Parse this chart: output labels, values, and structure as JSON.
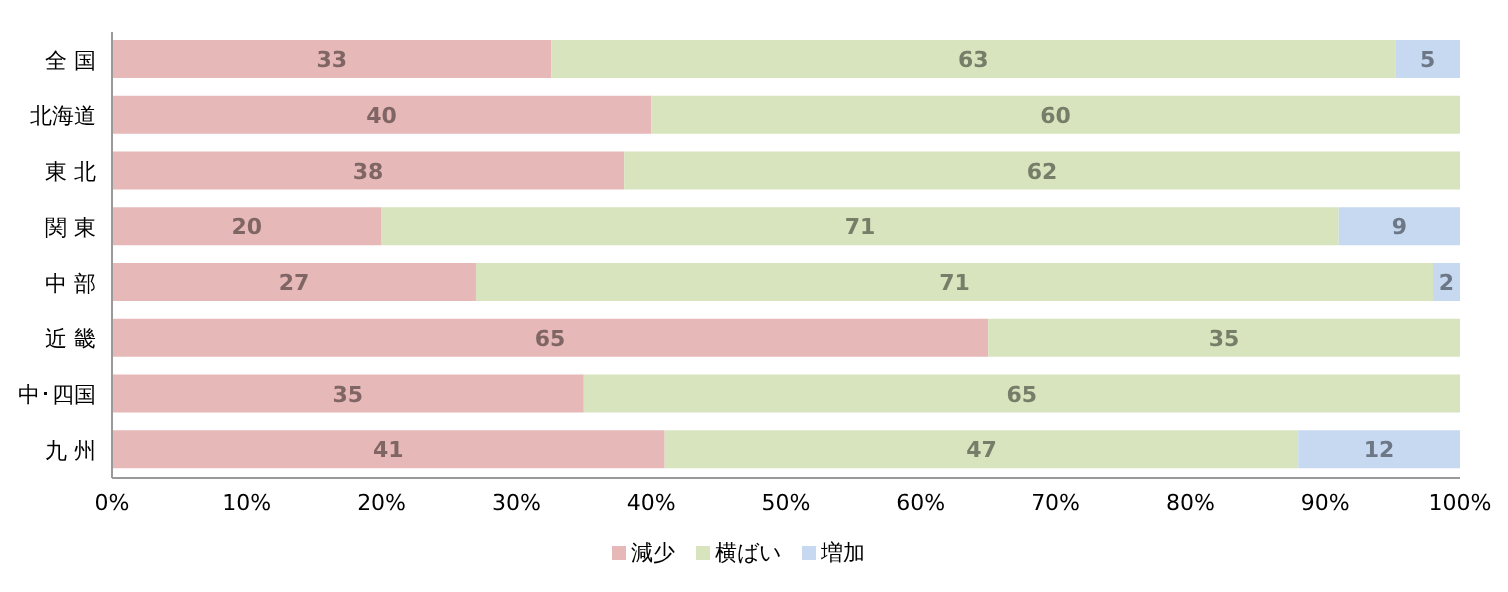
{
  "chart_data": {
    "type": "bar",
    "orientation": "horizontal",
    "stacked": true,
    "categories": [
      "全 国",
      "北海道",
      "東 北",
      "関 東",
      "中 部",
      "近 畿",
      "中･四国",
      "九 州"
    ],
    "series": [
      {
        "name": "減少",
        "color": "#e6b9b8",
        "values": [
          32.6,
          40,
          38,
          20,
          27,
          65,
          35,
          41
        ],
        "value_labels": [
          "33",
          "40",
          "38",
          "20",
          "27",
          "65",
          "35",
          "41"
        ]
      },
      {
        "name": "横ばい",
        "color": "#d7e4bd",
        "values": [
          62.6,
          60,
          62,
          71,
          71,
          35,
          65,
          47
        ],
        "value_labels": [
          "63",
          "60",
          "62",
          "71",
          "71",
          "35",
          "65",
          "47"
        ]
      },
      {
        "name": "増加",
        "color": "#c6d9f1",
        "values": [
          4.8,
          null,
          null,
          9,
          2,
          null,
          null,
          12
        ],
        "value_labels": [
          "5",
          null,
          null,
          "9",
          "2",
          null,
          null,
          "12"
        ]
      }
    ],
    "xlim": [
      0,
      100
    ],
    "xticks": [
      {
        "value": 0,
        "label": "0%"
      },
      {
        "value": 10,
        "label": "10%"
      },
      {
        "value": 20,
        "label": "20%"
      },
      {
        "value": 30,
        "label": "30%"
      },
      {
        "value": 40,
        "label": "40%"
      },
      {
        "value": 50,
        "label": "50%"
      },
      {
        "value": 60,
        "label": "60%"
      },
      {
        "value": 70,
        "label": "70%"
      },
      {
        "value": 80,
        "label": "80%"
      },
      {
        "value": 90,
        "label": "90%"
      },
      {
        "value": 100,
        "label": "100%"
      }
    ],
    "legend": "bottom",
    "grid": false
  }
}
